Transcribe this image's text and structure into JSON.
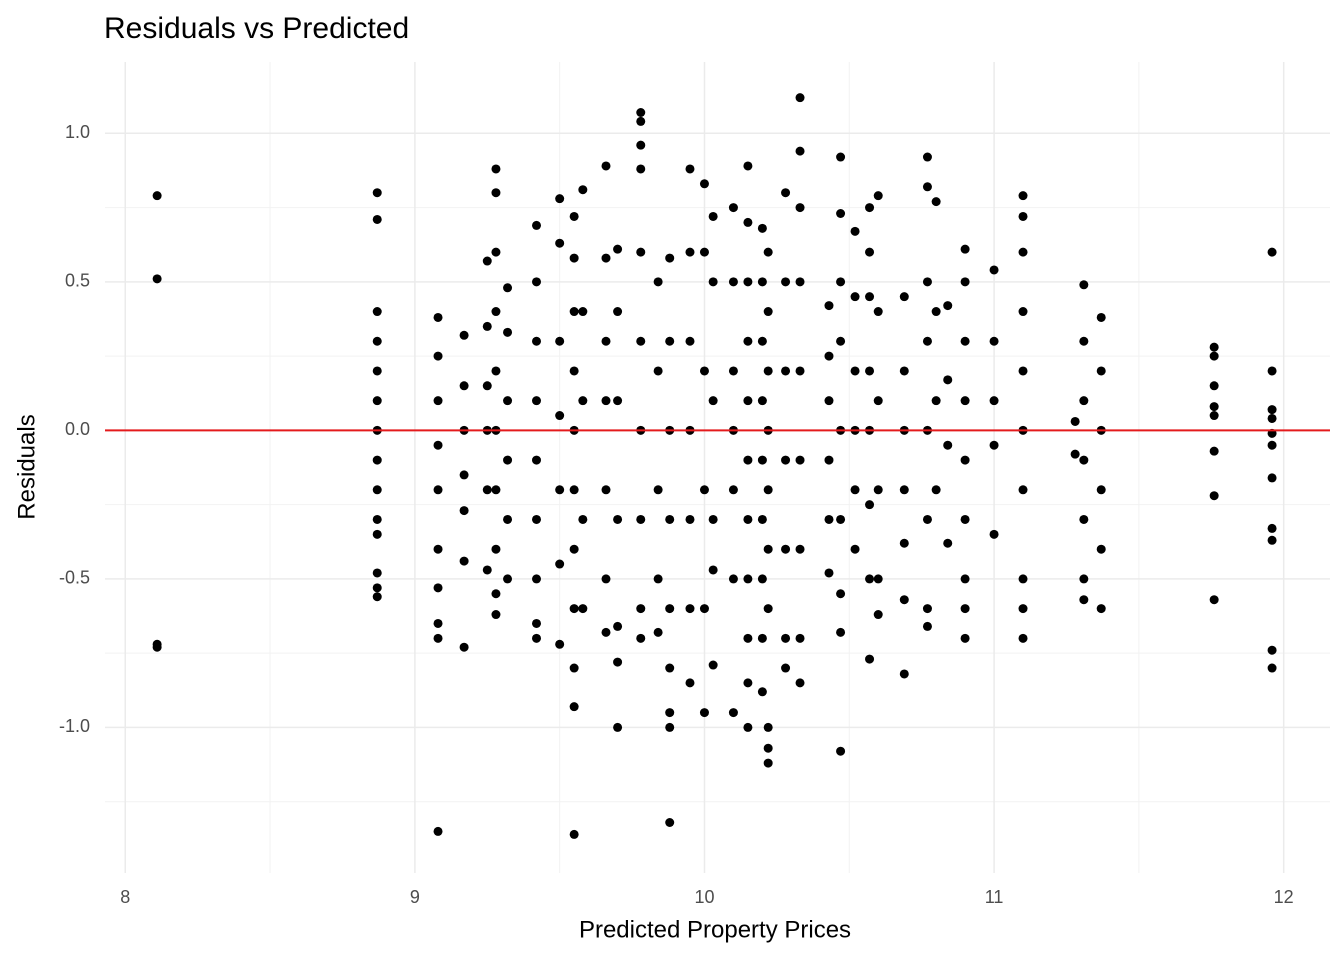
{
  "chart_data": {
    "type": "scatter",
    "title": "Residuals vs Predicted",
    "x_label": "Predicted Property Prices",
    "y_label": "Residuals",
    "color": "#000000",
    "hline": {
      "value": 0,
      "color": "#e41a1c"
    },
    "xlim": [
      7.93,
      12.16
    ],
    "ylim": [
      -1.49,
      1.24
    ],
    "xticks": [
      8,
      9,
      10,
      11,
      12
    ],
    "yticks": [
      {
        "value": -1,
        "label": "-1.0"
      },
      -0.5,
      {
        "value": 0,
        "label": "0.0"
      },
      0.5,
      {
        "value": 1,
        "label": "1.0"
      }
    ],
    "grid": true,
    "x": [
      8.11,
      8.11,
      8.11,
      8.11,
      8.87,
      8.87,
      8.87,
      8.87,
      8.87,
      8.87,
      8.87,
      8.87,
      8.87,
      8.87,
      8.87,
      8.87,
      8.87,
      8.87,
      9.08,
      9.08,
      9.08,
      9.08,
      9.08,
      9.08,
      9.08,
      9.08,
      9.08,
      9.08,
      9.17,
      9.17,
      9.17,
      9.17,
      9.17,
      9.17,
      9.17,
      9.25,
      9.25,
      9.25,
      9.25,
      9.25,
      9.25,
      9.28,
      9.28,
      9.28,
      9.28,
      9.28,
      9.28,
      9.28,
      9.28,
      9.28,
      9.28,
      9.32,
      9.32,
      9.32,
      9.32,
      9.32,
      9.32,
      9.42,
      9.42,
      9.42,
      9.42,
      9.42,
      9.42,
      9.42,
      9.42,
      9.42,
      9.5,
      9.5,
      9.5,
      9.5,
      9.5,
      9.5,
      9.5,
      9.55,
      9.55,
      9.55,
      9.55,
      9.55,
      9.55,
      9.55,
      9.55,
      9.55,
      9.55,
      9.55,
      9.58,
      9.58,
      9.58,
      9.58,
      9.58,
      9.66,
      9.66,
      9.66,
      9.66,
      9.66,
      9.66,
      9.66,
      9.7,
      9.7,
      9.7,
      9.7,
      9.7,
      9.7,
      9.7,
      9.78,
      9.78,
      9.78,
      9.78,
      9.78,
      9.78,
      9.78,
      9.78,
      9.78,
      9.78,
      9.84,
      9.84,
      9.84,
      9.84,
      9.84,
      9.88,
      9.88,
      9.88,
      9.88,
      9.88,
      9.88,
      9.88,
      9.88,
      9.88,
      9.95,
      9.95,
      9.95,
      9.95,
      9.95,
      9.95,
      9.95,
      10.0,
      10.0,
      10.0,
      10.0,
      10.0,
      10.0,
      10.03,
      10.03,
      10.03,
      10.03,
      10.03,
      10.03,
      10.1,
      10.1,
      10.1,
      10.1,
      10.1,
      10.1,
      10.1,
      10.15,
      10.15,
      10.15,
      10.15,
      10.15,
      10.15,
      10.15,
      10.15,
      10.15,
      10.15,
      10.15,
      10.2,
      10.2,
      10.2,
      10.2,
      10.2,
      10.2,
      10.2,
      10.2,
      10.2,
      10.22,
      10.22,
      10.22,
      10.22,
      10.22,
      10.22,
      10.22,
      10.22,
      10.22,
      10.22,
      10.28,
      10.28,
      10.28,
      10.28,
      10.28,
      10.28,
      10.28,
      10.33,
      10.33,
      10.33,
      10.33,
      10.33,
      10.33,
      10.33,
      10.33,
      10.33,
      10.43,
      10.43,
      10.43,
      10.43,
      10.43,
      10.43,
      10.47,
      10.47,
      10.47,
      10.47,
      10.47,
      10.47,
      10.47,
      10.47,
      10.47,
      10.52,
      10.52,
      10.52,
      10.52,
      10.52,
      10.52,
      10.57,
      10.57,
      10.57,
      10.57,
      10.57,
      10.57,
      10.57,
      10.57,
      10.6,
      10.6,
      10.6,
      10.6,
      10.6,
      10.6,
      10.69,
      10.69,
      10.69,
      10.69,
      10.69,
      10.69,
      10.69,
      10.77,
      10.77,
      10.77,
      10.77,
      10.77,
      10.77,
      10.77,
      10.77,
      10.8,
      10.8,
      10.8,
      10.8,
      10.84,
      10.84,
      10.84,
      10.84,
      10.9,
      10.9,
      10.9,
      10.9,
      10.9,
      10.9,
      10.9,
      10.9,
      10.9,
      11.0,
      11.0,
      11.0,
      11.0,
      11.0,
      11.1,
      11.1,
      11.1,
      11.1,
      11.1,
      11.1,
      11.1,
      11.1,
      11.1,
      11.1,
      11.28,
      11.28,
      11.31,
      11.31,
      11.31,
      11.31,
      11.31,
      11.31,
      11.31,
      11.37,
      11.37,
      11.37,
      11.37,
      11.37,
      11.37,
      11.76,
      11.76,
      11.76,
      11.76,
      11.76,
      11.76,
      11.76,
      11.76,
      11.96,
      11.96,
      11.96,
      11.96,
      11.96,
      11.96,
      11.96,
      11.96,
      11.96,
      11.96,
      11.96
    ],
    "values": [
      0.79,
      0.51,
      -0.72,
      -0.73,
      0.8,
      0.71,
      0.4,
      0.3,
      0.2,
      0.1,
      0.0,
      -0.1,
      -0.2,
      -0.3,
      -0.35,
      -0.48,
      -0.53,
      -0.56,
      0.38,
      0.25,
      0.1,
      -0.05,
      -0.2,
      -0.4,
      -0.53,
      -0.65,
      -0.7,
      -1.35,
      0.32,
      0.15,
      0.0,
      -0.15,
      -0.27,
      -0.44,
      -0.73,
      0.57,
      0.35,
      0.15,
      0.0,
      -0.2,
      -0.47,
      0.88,
      0.8,
      0.6,
      0.4,
      0.2,
      0.0,
      -0.2,
      -0.4,
      -0.55,
      -0.62,
      0.48,
      0.33,
      0.1,
      -0.1,
      -0.3,
      -0.5,
      0.69,
      0.5,
      0.3,
      0.1,
      -0.1,
      -0.3,
      -0.5,
      -0.65,
      -0.7,
      0.78,
      0.63,
      0.3,
      0.05,
      -0.2,
      -0.45,
      -0.72,
      0.72,
      0.58,
      0.4,
      0.2,
      0.0,
      -0.2,
      -0.4,
      -0.6,
      -0.8,
      -0.93,
      -1.36,
      0.81,
      0.4,
      0.1,
      -0.3,
      -0.6,
      0.89,
      0.58,
      0.3,
      0.1,
      -0.2,
      -0.5,
      -0.68,
      0.61,
      0.4,
      0.1,
      -0.3,
      -0.66,
      -0.78,
      -1.0,
      1.07,
      1.04,
      0.96,
      0.88,
      0.6,
      0.3,
      0.0,
      -0.3,
      -0.6,
      -0.7,
      0.5,
      0.2,
      -0.2,
      -0.5,
      -0.68,
      0.58,
      0.3,
      0.0,
      -0.3,
      -0.6,
      -0.8,
      -0.95,
      -1.0,
      -1.32,
      0.88,
      0.6,
      0.3,
      0.0,
      -0.3,
      -0.6,
      -0.85,
      0.83,
      0.6,
      0.2,
      -0.2,
      -0.6,
      -0.95,
      0.72,
      0.5,
      0.1,
      -0.3,
      -0.47,
      -0.79,
      0.75,
      0.5,
      0.2,
      0.0,
      -0.2,
      -0.5,
      -0.95,
      0.89,
      0.7,
      0.5,
      0.3,
      0.1,
      -0.1,
      -0.3,
      -0.5,
      -0.7,
      -0.85,
      -1.0,
      0.68,
      0.5,
      0.3,
      0.1,
      -0.1,
      -0.3,
      -0.5,
      -0.7,
      -0.88,
      0.6,
      0.4,
      0.2,
      0.0,
      -0.2,
      -0.4,
      -0.6,
      -1.07,
      -1.12,
      -1.0,
      0.8,
      0.5,
      0.2,
      -0.1,
      -0.4,
      -0.7,
      -0.8,
      1.12,
      0.94,
      0.75,
      0.5,
      0.2,
      -0.1,
      -0.4,
      -0.7,
      -0.85,
      0.42,
      0.25,
      0.1,
      -0.1,
      -0.3,
      -0.48,
      0.92,
      0.73,
      0.5,
      0.3,
      0.0,
      -0.3,
      -0.55,
      -0.68,
      -1.08,
      0.67,
      0.45,
      0.2,
      0.0,
      -0.2,
      -0.4,
      0.75,
      0.6,
      0.45,
      0.2,
      0.0,
      -0.25,
      -0.5,
      -0.77,
      0.79,
      0.4,
      0.1,
      -0.2,
      -0.5,
      -0.62,
      0.45,
      0.2,
      0.0,
      -0.2,
      -0.38,
      -0.57,
      -0.82,
      0.92,
      0.82,
      0.5,
      0.3,
      0.0,
      -0.3,
      -0.6,
      -0.66,
      0.77,
      0.4,
      0.1,
      -0.2,
      0.42,
      0.17,
      -0.05,
      -0.38,
      0.61,
      0.5,
      0.3,
      0.1,
      -0.1,
      -0.3,
      -0.5,
      -0.6,
      -0.7,
      0.54,
      0.3,
      0.1,
      -0.05,
      -0.35,
      0.79,
      0.72,
      0.6,
      0.4,
      0.2,
      0.0,
      -0.2,
      -0.5,
      -0.6,
      -0.7,
      0.03,
      -0.08,
      0.49,
      0.3,
      0.1,
      -0.1,
      -0.3,
      -0.5,
      -0.57,
      0.38,
      0.2,
      0.0,
      -0.2,
      -0.4,
      -0.6,
      0.28,
      0.25,
      0.15,
      0.08,
      0.05,
      -0.07,
      -0.22,
      -0.57,
      0.6,
      0.2,
      0.07,
      0.04,
      -0.01,
      -0.05,
      -0.16,
      -0.33,
      -0.37,
      -0.74,
      -0.8
    ]
  }
}
